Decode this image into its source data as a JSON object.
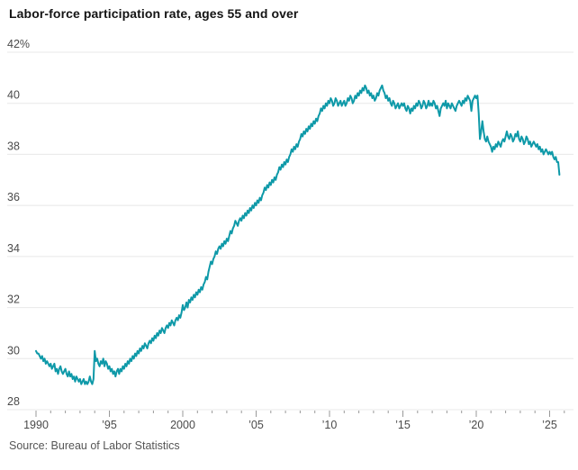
{
  "header": {
    "title": "Labor-force participation rate, ages 55 and over"
  },
  "footer": {
    "source": "Source: Bureau of Labor Statistics"
  },
  "colors": {
    "line": "#0e99a8",
    "grid": "#e8e8e8",
    "axis_text": "#4a4a4a",
    "tick": "#999999",
    "title_text": "#141414",
    "source_text": "#555555"
  },
  "chart_data": {
    "type": "line",
    "title": "Labor-force participation rate, ages 55 and over",
    "series_name": "Labor-force participation rate, ages 55 and over (%)",
    "frequency": "monthly",
    "values_start": "1990-01",
    "values_end": "2025-09",
    "ylim": [
      28,
      42
    ],
    "xlim": [
      1990,
      2026.6
    ],
    "grid": true,
    "legend": "none",
    "y_ticks": [
      {
        "value": 42,
        "label": "42%"
      },
      {
        "value": 40,
        "label": "40"
      },
      {
        "value": 38,
        "label": "38"
      },
      {
        "value": 36,
        "label": "36"
      },
      {
        "value": 34,
        "label": "34"
      },
      {
        "value": 32,
        "label": "32"
      },
      {
        "value": 30,
        "label": "30"
      },
      {
        "value": 28,
        "label": "28"
      }
    ],
    "x_ticks": [
      {
        "year": 1990,
        "label": "1990"
      },
      {
        "year": 1995,
        "label": "’95"
      },
      {
        "year": 2000,
        "label": "2000"
      },
      {
        "year": 2005,
        "label": "’05"
      },
      {
        "year": 2010,
        "label": "’10"
      },
      {
        "year": 2015,
        "label": "’15"
      },
      {
        "year": 2020,
        "label": "’20"
      },
      {
        "year": 2025,
        "label": "’25"
      }
    ],
    "minor_tick_years": [
      1990,
      2026
    ],
    "monthly_values": {
      "1990": [
        30.3,
        30.2,
        30.2,
        30.1,
        30.0,
        30.1,
        29.9,
        30.0,
        29.8,
        29.9,
        29.8,
        29.7
      ],
      "1991": [
        29.8,
        29.6,
        29.7,
        29.8,
        29.5,
        29.6,
        29.4,
        29.6,
        29.7,
        29.5,
        29.4,
        29.5
      ],
      "1992": [
        29.6,
        29.4,
        29.3,
        29.5,
        29.3,
        29.4,
        29.2,
        29.3,
        29.1,
        29.3,
        29.2,
        29.1
      ],
      "1993": [
        29.2,
        29.0,
        29.1,
        29.2,
        29.0,
        29.1,
        29.0,
        29.1,
        29.3,
        29.1,
        29.0,
        29.2
      ],
      "1994": [
        30.3,
        29.9,
        30.0,
        29.8,
        29.7,
        29.9,
        29.8,
        30.0,
        29.7,
        29.9,
        29.8,
        29.6
      ],
      "1995": [
        29.7,
        29.5,
        29.6,
        29.4,
        29.5,
        29.3,
        29.5,
        29.6,
        29.4,
        29.6,
        29.5,
        29.7
      ],
      "1996": [
        29.6,
        29.8,
        29.7,
        29.9,
        29.8,
        30.0,
        29.9,
        30.1,
        30.0,
        30.2,
        30.1,
        30.3
      ],
      "1997": [
        30.2,
        30.4,
        30.3,
        30.5,
        30.4,
        30.6,
        30.5,
        30.4,
        30.6,
        30.7,
        30.6,
        30.8
      ],
      "1998": [
        30.7,
        30.9,
        30.8,
        31.0,
        30.9,
        31.1,
        31.0,
        31.2,
        31.1,
        31.0,
        31.2,
        31.3
      ],
      "1999": [
        31.2,
        31.4,
        31.3,
        31.5,
        31.4,
        31.3,
        31.5,
        31.6,
        31.5,
        31.7,
        31.6,
        31.8
      ],
      "2000": [
        32.1,
        31.9,
        32.0,
        32.2,
        32.0,
        32.3,
        32.2,
        32.4,
        32.3,
        32.5,
        32.4,
        32.6
      ],
      "2001": [
        32.5,
        32.7,
        32.6,
        32.8,
        32.7,
        32.9,
        33.0,
        33.2,
        33.1,
        33.4,
        33.6,
        33.8
      ],
      "2002": [
        33.7,
        33.9,
        34.0,
        34.2,
        34.1,
        34.3,
        34.4,
        34.3,
        34.5,
        34.4,
        34.6,
        34.5
      ],
      "2003": [
        34.7,
        34.6,
        34.8,
        35.0,
        34.9,
        35.1,
        35.2,
        35.4,
        35.3,
        35.2,
        35.4,
        35.5
      ],
      "2004": [
        35.4,
        35.6,
        35.5,
        35.7,
        35.6,
        35.8,
        35.7,
        35.9,
        35.8,
        36.0,
        35.9,
        36.1
      ],
      "2005": [
        36.0,
        36.2,
        36.1,
        36.3,
        36.2,
        36.4,
        36.5,
        36.7,
        36.6,
        36.8,
        36.7,
        36.9
      ],
      "2006": [
        36.8,
        37.0,
        36.9,
        37.1,
        37.0,
        37.2,
        37.3,
        37.5,
        37.4,
        37.6,
        37.5,
        37.7
      ],
      "2007": [
        37.6,
        37.8,
        37.7,
        37.9,
        38.0,
        38.2,
        38.1,
        38.3,
        38.2,
        38.4,
        38.3,
        38.5
      ],
      "2008": [
        38.6,
        38.8,
        38.7,
        38.9,
        38.8,
        39.0,
        38.9,
        39.1,
        39.0,
        39.2,
        39.1,
        39.3
      ],
      "2009": [
        39.2,
        39.4,
        39.3,
        39.5,
        39.6,
        39.8,
        39.7,
        39.9,
        39.8,
        40.0,
        39.9,
        40.1
      ],
      "2010": [
        40.0,
        40.2,
        40.1,
        39.9,
        40.0,
        40.2,
        40.1,
        39.9,
        40.0,
        40.1,
        39.9,
        40.0
      ],
      "2011": [
        40.1,
        39.9,
        40.0,
        40.2,
        40.1,
        40.3,
        40.2,
        40.0,
        40.1,
        40.3,
        40.2,
        40.4
      ],
      "2012": [
        40.3,
        40.5,
        40.4,
        40.6,
        40.5,
        40.7,
        40.6,
        40.4,
        40.5,
        40.3,
        40.4,
        40.2
      ],
      "2013": [
        40.3,
        40.1,
        40.2,
        40.4,
        40.3,
        40.5,
        40.6,
        40.7,
        40.5,
        40.4,
        40.2,
        40.3
      ],
      "2014": [
        40.1,
        40.2,
        40.0,
        39.9,
        40.1,
        40.0,
        39.8,
        39.9,
        40.0,
        39.8,
        39.9,
        40.0
      ],
      "2015": [
        39.9,
        40.0,
        39.8,
        39.7,
        39.9,
        39.8,
        39.6,
        39.8,
        39.7,
        39.9,
        39.8,
        40.0
      ],
      "2016": [
        39.9,
        40.1,
        40.0,
        39.8,
        39.9,
        40.1,
        40.0,
        39.8,
        39.9,
        40.1,
        39.9,
        40.0
      ],
      "2017": [
        39.9,
        40.1,
        40.0,
        39.8,
        39.9,
        39.7,
        39.5,
        39.8,
        39.9,
        40.0,
        39.9,
        40.1
      ],
      "2018": [
        39.8,
        40.0,
        39.9,
        39.8,
        40.0,
        39.9,
        39.8,
        39.7,
        39.9,
        40.0,
        40.1,
        40.0
      ],
      "2019": [
        39.9,
        40.1,
        40.0,
        40.2,
        40.1,
        40.3,
        40.2,
        40.1,
        39.7,
        40.1,
        40.2,
        40.3
      ],
      "2020": [
        40.2,
        40.3,
        39.6,
        38.6,
        38.9,
        39.3,
        38.9,
        38.6,
        38.5,
        38.7,
        38.5,
        38.4
      ],
      "2021": [
        38.3,
        38.1,
        38.3,
        38.2,
        38.4,
        38.3,
        38.5,
        38.4,
        38.3,
        38.5,
        38.6,
        38.5
      ],
      "2022": [
        38.7,
        38.9,
        38.7,
        38.6,
        38.8,
        38.7,
        38.5,
        38.6,
        38.8,
        38.7,
        38.9,
        38.6
      ],
      "2023": [
        38.5,
        38.7,
        38.6,
        38.4,
        38.5,
        38.7,
        38.6,
        38.4,
        38.5,
        38.3,
        38.4,
        38.5
      ],
      "2024": [
        38.4,
        38.3,
        38.4,
        38.2,
        38.3,
        38.1,
        38.2,
        38.0,
        38.1,
        38.2,
        38.1,
        38.0
      ],
      "2025": [
        38.1,
        38.0,
        38.1,
        37.9,
        37.8,
        37.9,
        37.7,
        37.7,
        37.2
      ]
    }
  }
}
